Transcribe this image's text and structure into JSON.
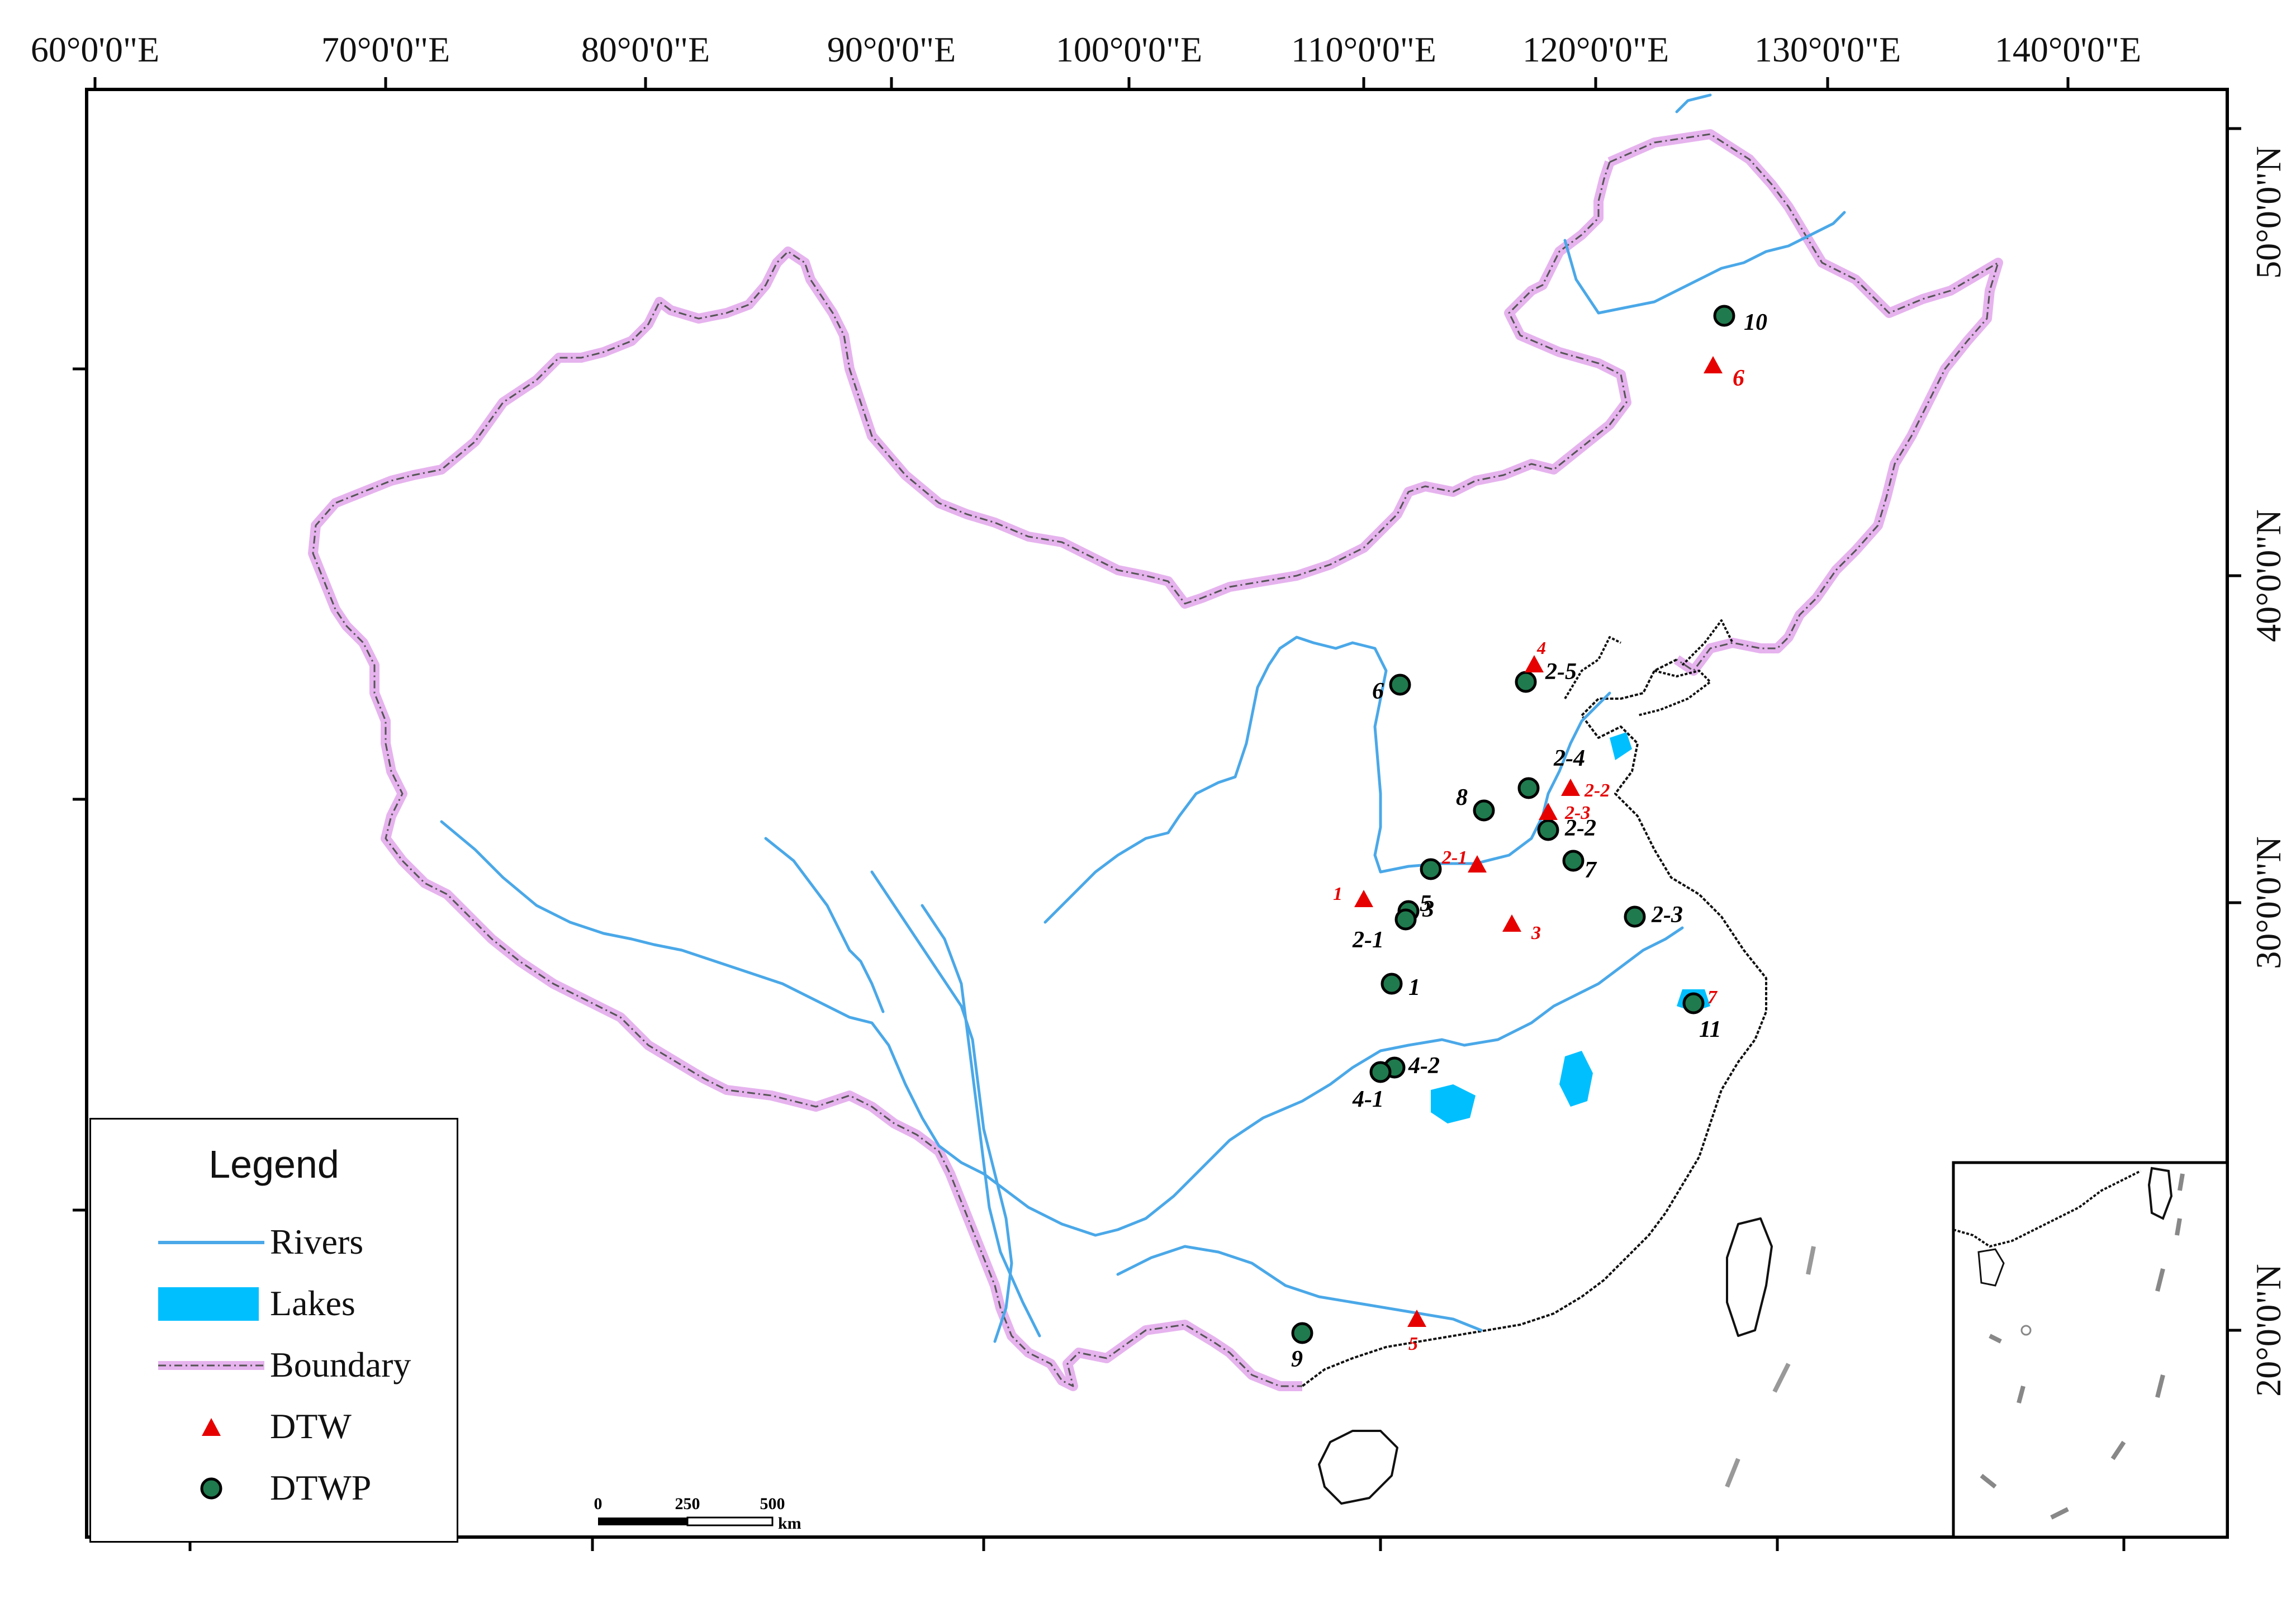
{
  "map": {
    "top_ticks": [
      "60°0'0\"E",
      "70°0'0\"E",
      "80°0'0\"E",
      "90°0'0\"E",
      "100°0'0\"E",
      "110°0'0\"E",
      "120°0'0\"E",
      "130°0'0\"E",
      "140°0'0\"E"
    ],
    "right_ticks": [
      "50°0'0\"N",
      "40°0'0\"N",
      "30°0'0\"N",
      "20°0'0\"N"
    ],
    "colors": {
      "river": "#4aa8e8",
      "lake": "#00bfff",
      "boundary": "#e6b3ee",
      "boundary_dash": "#555555",
      "dtw": "#e60000",
      "dtwp": "#1f7a4d",
      "coast": "#111111"
    }
  },
  "legend": {
    "title": "Legend",
    "items": [
      {
        "label": "Rivers",
        "symbol": "river-line"
      },
      {
        "label": "Lakes",
        "symbol": "lake-fill"
      },
      {
        "label": "Boundary",
        "symbol": "boundary-line"
      },
      {
        "label": "DTW",
        "symbol": "red-triangle"
      },
      {
        "label": "DTWP",
        "symbol": "green-circle"
      }
    ]
  },
  "scale_bar": {
    "labels": [
      "0",
      "250",
      "500"
    ],
    "unit": "km"
  },
  "sites": {
    "dtwp": [
      {
        "label": "10"
      },
      {
        "label": "6"
      },
      {
        "label": "2-5"
      },
      {
        "label": "2-4"
      },
      {
        "label": "8"
      },
      {
        "label": "2-2"
      },
      {
        "label": "7"
      },
      {
        "label": "5"
      },
      {
        "label": "2-3"
      },
      {
        "label": "3"
      },
      {
        "label": "2-1"
      },
      {
        "label": "1"
      },
      {
        "label": "4-2"
      },
      {
        "label": "4-1"
      },
      {
        "label": "11"
      },
      {
        "label": "9"
      }
    ],
    "dtw": [
      {
        "label": "6"
      },
      {
        "label": "4"
      },
      {
        "label": "2-2"
      },
      {
        "label": "2-3"
      },
      {
        "label": "2-1"
      },
      {
        "label": "1"
      },
      {
        "label": "3"
      },
      {
        "label": "7"
      },
      {
        "label": "5"
      }
    ]
  }
}
